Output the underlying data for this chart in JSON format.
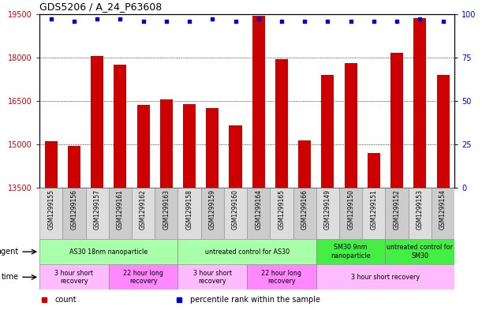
{
  "title": "GDS5206 / A_24_P63608",
  "samples": [
    "GSM1299155",
    "GSM1299156",
    "GSM1299157",
    "GSM1299161",
    "GSM1299162",
    "GSM1299163",
    "GSM1299158",
    "GSM1299159",
    "GSM1299160",
    "GSM1299164",
    "GSM1299165",
    "GSM1299166",
    "GSM1299149",
    "GSM1299150",
    "GSM1299151",
    "GSM1299152",
    "GSM1299153",
    "GSM1299154"
  ],
  "counts": [
    15100,
    14950,
    18050,
    17750,
    16350,
    16550,
    16400,
    16250,
    15650,
    19450,
    17950,
    15150,
    17400,
    17800,
    14700,
    18150,
    19350,
    17400
  ],
  "percentiles": [
    97,
    96,
    97,
    97,
    96,
    96,
    96,
    97,
    96,
    97,
    96,
    96,
    96,
    96,
    96,
    96,
    97,
    96
  ],
  "ylim_left": [
    13500,
    19500
  ],
  "ylim_right": [
    0,
    100
  ],
  "yticks_left": [
    13500,
    15000,
    16500,
    18000,
    19500
  ],
  "yticks_right": [
    0,
    25,
    50,
    75,
    100
  ],
  "bar_color": "#cc0000",
  "percentile_color": "#0000cc",
  "agent_groups": [
    {
      "label": "AS30 18nm nanoparticle",
      "start": 0,
      "end": 6,
      "color": "#aaffaa"
    },
    {
      "label": "untreated control for AS30",
      "start": 6,
      "end": 12,
      "color": "#aaffaa"
    },
    {
      "label": "SM30 9nm\nnanoparticle",
      "start": 12,
      "end": 15,
      "color": "#44ee44"
    },
    {
      "label": "untreated control for\nSM30",
      "start": 15,
      "end": 18,
      "color": "#44ee44"
    }
  ],
  "time_groups": [
    {
      "label": "3 hour short\nrecovery",
      "start": 0,
      "end": 3,
      "color": "#ffbbff"
    },
    {
      "label": "22 hour long\nrecovery",
      "start": 3,
      "end": 6,
      "color": "#ff88ff"
    },
    {
      "label": "3 hour short\nrecovery",
      "start": 6,
      "end": 9,
      "color": "#ffbbff"
    },
    {
      "label": "22 hour long\nrecovery",
      "start": 9,
      "end": 12,
      "color": "#ff88ff"
    },
    {
      "label": "3 hour short recovery",
      "start": 12,
      "end": 18,
      "color": "#ffbbff"
    }
  ],
  "legend_items": [
    {
      "label": "count",
      "color": "#cc0000"
    },
    {
      "label": "percentile rank within the sample",
      "color": "#0000cc"
    }
  ]
}
